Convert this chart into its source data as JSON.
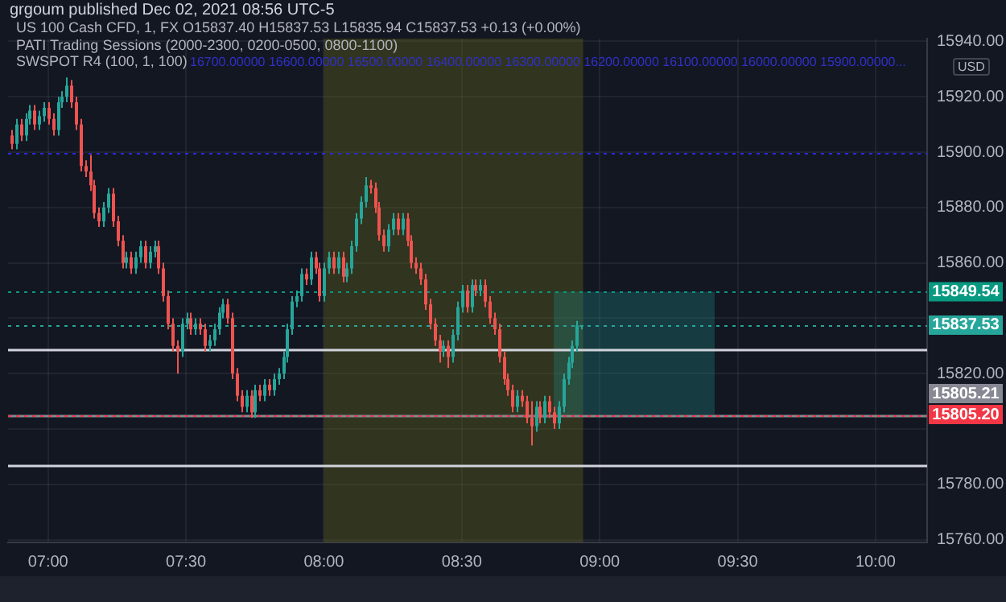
{
  "chart_data": {
    "type": "candlestick",
    "title": "US 100 Cash CFD, 1, FX  O15837.40 H15837.53 L15835.94 C15837.53 +0.13 (+0.00%)",
    "annotations": [
      "grgoum published Dec 02, 2021 08:56 UTC-5",
      "PATI Trading Sessions (2000-2300, 0200-0500, 0800-1100)",
      "SWSPOT R4 (100, 1, 100)",
      "16700.00000  16600.00000  16500.00000  16400.00000  16300.00000  16200.00000  16100.00000  16000.00000  15900.00000...",
      "USD"
    ],
    "x": [
      6.8667,
      6.8833,
      6.9,
      6.9167,
      6.9333,
      6.95,
      6.9667,
      6.9833,
      7,
      7.0167,
      7.0333,
      7.05,
      7.0667,
      7.0833,
      7.1,
      7.1167,
      7.1333,
      7.15,
      7.1667,
      7.1833,
      7.2,
      7.2167,
      7.2333,
      7.25,
      7.2667,
      7.2833,
      7.3,
      7.3167,
      7.3333,
      7.35,
      7.3667,
      7.3833,
      7.4,
      7.4167,
      7.4333,
      7.45,
      7.4667,
      7.4833,
      7.5,
      7.5167,
      7.5333,
      7.55,
      7.5667,
      7.5833,
      7.6,
      7.6167,
      7.6333,
      7.65,
      7.6667,
      7.6833,
      7.7,
      7.7167,
      7.7333,
      7.75,
      7.7667,
      7.7833,
      7.8,
      7.8167,
      7.8333,
      7.85,
      7.8667,
      7.8833,
      7.9,
      7.9167,
      7.9333,
      7.95,
      7.9667,
      7.9833,
      8,
      8.0167,
      8.0333,
      8.05,
      8.0667,
      8.0833,
      8.1,
      8.1167,
      8.1333,
      8.15,
      8.1667,
      8.1833,
      8.2,
      8.2167,
      8.2333,
      8.25,
      8.2667,
      8.2833,
      8.3,
      8.3167,
      8.3333,
      8.35,
      8.3667,
      8.3833,
      8.4,
      8.4167,
      8.4333,
      8.45,
      8.4667,
      8.4833,
      8.5,
      8.5167,
      8.5333,
      8.55,
      8.5667,
      8.5833,
      8.6,
      8.6167,
      8.6333,
      8.65,
      8.6667,
      8.6833,
      8.7,
      8.7167,
      8.7333,
      8.75,
      8.7667,
      8.7833,
      8.8,
      8.8167,
      8.8333,
      8.85,
      8.8667,
      8.8833,
      8.9,
      8.9167,
      8.9333
    ],
    "ohlc": [
      [
        15906,
        15908,
        15901,
        15903
      ],
      [
        15903,
        15912,
        15901,
        15910
      ],
      [
        15910,
        15912,
        15904,
        15906
      ],
      [
        15906,
        15914,
        15904,
        15912
      ],
      [
        15912,
        15917,
        15910,
        15915
      ],
      [
        15915,
        15917,
        15908,
        15910
      ],
      [
        15910,
        15915,
        15908,
        15913
      ],
      [
        15913,
        15918,
        15911,
        15916
      ],
      [
        15916,
        15918,
        15910,
        15912
      ],
      [
        15912,
        15914,
        15906,
        15908
      ],
      [
        15908,
        15920,
        15906,
        15918
      ],
      [
        15918,
        15922,
        15916,
        15920
      ],
      [
        15920,
        15927,
        15918,
        15924
      ],
      [
        15924,
        15926,
        15916,
        15918
      ],
      [
        15918,
        15920,
        15908,
        15910
      ],
      [
        15910,
        15912,
        15893,
        15895
      ],
      [
        15895,
        15897,
        15891,
        15893
      ],
      [
        15893,
        15899,
        15886,
        15888
      ],
      [
        15888,
        15890,
        15876,
        15878
      ],
      [
        15878,
        15880,
        15873,
        15875
      ],
      [
        15875,
        15882,
        15873,
        15880
      ],
      [
        15880,
        15887,
        15878,
        15885
      ],
      [
        15885,
        15887,
        15873,
        15875
      ],
      [
        15875,
        15877,
        15866,
        15868
      ],
      [
        15868,
        15870,
        15858,
        15860
      ],
      [
        15860,
        15864,
        15858,
        15862
      ],
      [
        15862,
        15864,
        15856,
        15858
      ],
      [
        15858,
        15864,
        15856,
        15862
      ],
      [
        15862,
        15868,
        15860,
        15866
      ],
      [
        15866,
        15868,
        15858,
        15860
      ],
      [
        15860,
        15866,
        15858,
        15864
      ],
      [
        15864,
        15868,
        15862,
        15866
      ],
      [
        15866,
        15868,
        15856,
        15858
      ],
      [
        15858,
        15860,
        15846,
        15848
      ],
      [
        15848,
        15850,
        15836,
        15838
      ],
      [
        15838,
        15840,
        15828,
        15830
      ],
      [
        15830,
        15832,
        15820,
        15828
      ],
      [
        15828,
        15840,
        15826,
        15838
      ],
      [
        15838,
        15842,
        15836,
        15840
      ],
      [
        15840,
        15842,
        15834,
        15836
      ],
      [
        15836,
        15840,
        15834,
        15838
      ],
      [
        15838,
        15840,
        15834,
        15836
      ],
      [
        15836,
        15838,
        15828,
        15830
      ],
      [
        15830,
        15834,
        15828,
        15832
      ],
      [
        15832,
        15838,
        15830,
        15836
      ],
      [
        15836,
        15844,
        15834,
        15842
      ],
      [
        15842,
        15847,
        15840,
        15845
      ],
      [
        15845,
        15847,
        15838,
        15840
      ],
      [
        15840,
        15842,
        15818,
        15820
      ],
      [
        15820,
        15822,
        15810,
        15812
      ],
      [
        15812,
        15814,
        15806,
        15808
      ],
      [
        15808,
        15814,
        15806,
        15812
      ],
      [
        15812,
        15814,
        15804,
        15806
      ],
      [
        15806,
        15816,
        15804,
        15814
      ],
      [
        15814,
        15816,
        15810,
        15812
      ],
      [
        15812,
        15818,
        15810,
        15816
      ],
      [
        15816,
        15818,
        15812,
        15814
      ],
      [
        15814,
        15820,
        15812,
        15818
      ],
      [
        15818,
        15822,
        15816,
        15820
      ],
      [
        15820,
        15828,
        15818,
        15826
      ],
      [
        15826,
        15838,
        15824,
        15836
      ],
      [
        15836,
        15848,
        15834,
        15846
      ],
      [
        15846,
        15850,
        15844,
        15848
      ],
      [
        15848,
        15858,
        15846,
        15856
      ],
      [
        15856,
        15858,
        15852,
        15854
      ],
      [
        15854,
        15864,
        15852,
        15862
      ],
      [
        15862,
        15864,
        15856,
        15858
      ],
      [
        15858,
        15860,
        15846,
        15848
      ],
      [
        15848,
        15860,
        15846,
        15858
      ],
      [
        15858,
        15864,
        15856,
        15862
      ],
      [
        15862,
        15864,
        15856,
        15858
      ],
      [
        15858,
        15864,
        15856,
        15862
      ],
      [
        15862,
        15864,
        15853,
        15855
      ],
      [
        15855,
        15860,
        15853,
        15858
      ],
      [
        15858,
        15868,
        15856,
        15866
      ],
      [
        15866,
        15878,
        15864,
        15876
      ],
      [
        15876,
        15884,
        15874,
        15882
      ],
      [
        15882,
        15891,
        15880,
        15888
      ],
      [
        15888,
        15890,
        15885,
        15887
      ],
      [
        15887,
        15889,
        15878,
        15880
      ],
      [
        15880,
        15882,
        15868,
        15870
      ],
      [
        15870,
        15872,
        15864,
        15866
      ],
      [
        15866,
        15874,
        15864,
        15872
      ],
      [
        15872,
        15878,
        15870,
        15876
      ],
      [
        15876,
        15878,
        15870,
        15872
      ],
      [
        15872,
        15878,
        15870,
        15876
      ],
      [
        15876,
        15878,
        15866,
        15868
      ],
      [
        15868,
        15870,
        15858,
        15860
      ],
      [
        15860,
        15862,
        15856,
        15858
      ],
      [
        15858,
        15860,
        15852,
        15854
      ],
      [
        15854,
        15856,
        15843,
        15845
      ],
      [
        15845,
        15847,
        15836,
        15838
      ],
      [
        15838,
        15840,
        15830,
        15832
      ],
      [
        15832,
        15834,
        15824,
        15828
      ],
      [
        15828,
        15832,
        15826,
        15830
      ],
      [
        15830,
        15832,
        15822,
        15826
      ],
      [
        15826,
        15836,
        15824,
        15834
      ],
      [
        15834,
        15846,
        15832,
        15844
      ],
      [
        15844,
        15852,
        15842,
        15850
      ],
      [
        15850,
        15852,
        15842,
        15844
      ],
      [
        15844,
        15854,
        15842,
        15852
      ],
      [
        15852,
        15854,
        15848,
        15850
      ],
      [
        15850,
        15854,
        15848,
        15852
      ],
      [
        15852,
        15854,
        15844,
        15846
      ],
      [
        15846,
        15848,
        15838,
        15840
      ],
      [
        15840,
        15842,
        15834,
        15836
      ],
      [
        15836,
        15838,
        15824,
        15826
      ],
      [
        15826,
        15828,
        15816,
        15818
      ],
      [
        15818,
        15820,
        15812,
        15814
      ],
      [
        15814,
        15816,
        15806,
        15808
      ],
      [
        15808,
        15814,
        15806,
        15812
      ],
      [
        15812,
        15814,
        15808,
        15810
      ],
      [
        15810,
        15812,
        15802,
        15804
      ],
      [
        15804,
        15810,
        15794,
        15801
      ],
      [
        15801,
        15810,
        15799,
        15808
      ],
      [
        15808,
        15810,
        15802,
        15804
      ],
      [
        15804,
        15812,
        15802,
        15810
      ],
      [
        15810,
        15812,
        15804,
        15806
      ],
      [
        15806,
        15808,
        15800,
        15802
      ],
      [
        15802,
        15810,
        15800,
        15808
      ],
      [
        15808,
        15820,
        15806,
        15818
      ],
      [
        15818,
        15826,
        15816,
        15824
      ],
      [
        15824,
        15832,
        15822,
        15830
      ],
      [
        15830,
        15839,
        15828,
        15837.4
      ],
      [
        15837.4,
        15837.53,
        15835.94,
        15837.53
      ]
    ],
    "xlim": [
      6.855,
      10.187
    ],
    "xticks": [
      {
        "value": 7,
        "label": "07:00"
      },
      {
        "value": 7.5,
        "label": "07:30"
      },
      {
        "value": 8,
        "label": "08:00"
      },
      {
        "value": 8.5,
        "label": "08:30"
      },
      {
        "value": 9,
        "label": "09:00"
      },
      {
        "value": 9.5,
        "label": "09:30"
      },
      {
        "value": 10,
        "label": "10:00"
      }
    ],
    "ylim": [
      15759,
      15941
    ],
    "yticks": [
      {
        "value": 15760,
        "label": "15760.00"
      },
      {
        "value": 15780,
        "label": "15780.00"
      },
      {
        "value": 15800,
        "label": null
      },
      {
        "value": 15820,
        "label": "15820.00"
      },
      {
        "value": 15840,
        "label": null
      },
      {
        "value": 15860,
        "label": "15860.00"
      },
      {
        "value": 15880,
        "label": "15880.00"
      },
      {
        "value": 15900,
        "label": "15900.00"
      },
      {
        "value": 15920,
        "label": "15920.00"
      },
      {
        "value": 15940,
        "label": "15940.00"
      }
    ],
    "grid": true,
    "bands": [
      {
        "axis": "x",
        "from": 8,
        "to": 8.94,
        "color": "#6b6b1a"
      },
      {
        "axis": "y",
        "from": 15805.21,
        "to": 15849.54,
        "color": "#1f8f88"
      }
    ],
    "ref_lines": [
      {
        "axis": "y",
        "value": 15900,
        "color": "#2a2ae0",
        "line_style": "dotted"
      },
      {
        "axis": "y",
        "value": 15828.6,
        "color": "#d1d4dc",
        "line_style": "solid"
      },
      {
        "axis": "y",
        "value": 15786.9,
        "color": "#d1d4dc",
        "line_style": "solid"
      },
      {
        "axis": "y",
        "value": 15805.21,
        "label": "15805.21",
        "color": "#868993",
        "line_style": "solid"
      },
      {
        "axis": "y",
        "value": 15849.54,
        "label": "15849.54",
        "color": "#089981",
        "line_style": "dotted"
      },
      {
        "axis": "y",
        "value": 15837.53,
        "label": "15837.53",
        "color": "#26a69a",
        "line_style": "dotted"
      },
      {
        "axis": "y",
        "value": 15805.2,
        "label": "15805.20",
        "color": "#f23645",
        "line_style": "dotted"
      }
    ]
  }
}
